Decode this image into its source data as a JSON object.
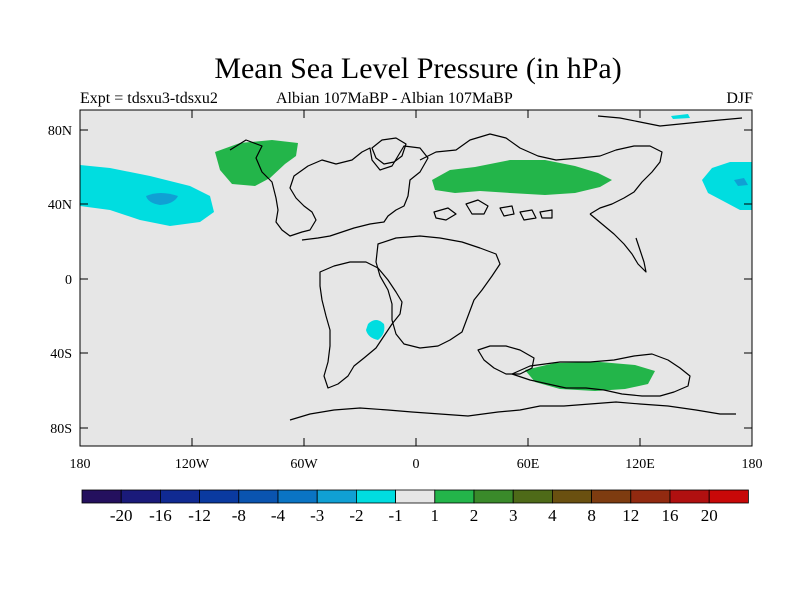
{
  "title": "Mean Sea Level Pressure (in hPa)",
  "subtitle_left": "Expt = tdsxu3-tdsxu2",
  "subtitle_center": "Albian   107MaBP - Albian   107MaBP",
  "subtitle_right": "DJF",
  "lat_labels": [
    "80N",
    "40N",
    "0",
    "40S",
    "80S"
  ],
  "lon_labels": [
    "180",
    "120W",
    "60W",
    "0",
    "60E",
    "120E",
    "180"
  ],
  "colorbar": {
    "colors": [
      "#24105e",
      "#1a1a7a",
      "#102a92",
      "#0a3aa0",
      "#0a54b0",
      "#0a74c4",
      "#10a0d4",
      "#00dde0",
      "#e6e6e6",
      "#23b54a",
      "#3a8a2a",
      "#4e6a18",
      "#6a5010",
      "#7e3c10",
      "#922a10",
      "#b01010",
      "#c80808"
    ],
    "labels": [
      "-20",
      "-16",
      "-12",
      "-8",
      "-4",
      "-3",
      "-2",
      "-1",
      "1",
      "2",
      "3",
      "4",
      "8",
      "12",
      "16",
      "20"
    ]
  }
}
